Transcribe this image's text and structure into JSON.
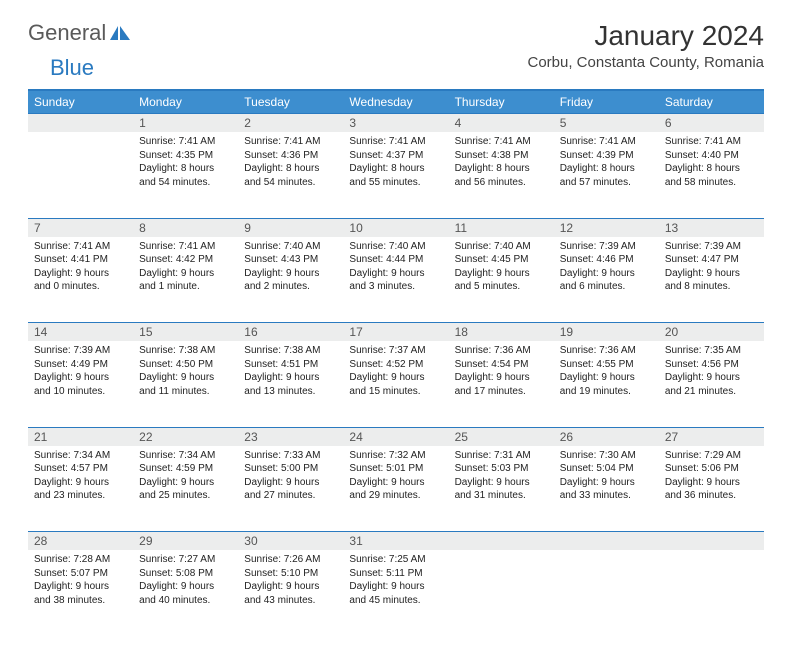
{
  "brand": {
    "part1": "General",
    "part2": "Blue"
  },
  "title": "January 2024",
  "location": "Corbu, Constanta County, Romania",
  "colors": {
    "header_bg": "#3d8ecf",
    "border": "#2a7ac0",
    "daynum_bg": "#eceded",
    "text": "#222222",
    "title_text": "#333333"
  },
  "weekdays": [
    "Sunday",
    "Monday",
    "Tuesday",
    "Wednesday",
    "Thursday",
    "Friday",
    "Saturday"
  ],
  "weeks": [
    {
      "nums": [
        "",
        "1",
        "2",
        "3",
        "4",
        "5",
        "6"
      ],
      "cells": [
        null,
        {
          "sunrise": "Sunrise: 7:41 AM",
          "sunset": "Sunset: 4:35 PM",
          "day1": "Daylight: 8 hours",
          "day2": "and 54 minutes."
        },
        {
          "sunrise": "Sunrise: 7:41 AM",
          "sunset": "Sunset: 4:36 PM",
          "day1": "Daylight: 8 hours",
          "day2": "and 54 minutes."
        },
        {
          "sunrise": "Sunrise: 7:41 AM",
          "sunset": "Sunset: 4:37 PM",
          "day1": "Daylight: 8 hours",
          "day2": "and 55 minutes."
        },
        {
          "sunrise": "Sunrise: 7:41 AM",
          "sunset": "Sunset: 4:38 PM",
          "day1": "Daylight: 8 hours",
          "day2": "and 56 minutes."
        },
        {
          "sunrise": "Sunrise: 7:41 AM",
          "sunset": "Sunset: 4:39 PM",
          "day1": "Daylight: 8 hours",
          "day2": "and 57 minutes."
        },
        {
          "sunrise": "Sunrise: 7:41 AM",
          "sunset": "Sunset: 4:40 PM",
          "day1": "Daylight: 8 hours",
          "day2": "and 58 minutes."
        }
      ]
    },
    {
      "nums": [
        "7",
        "8",
        "9",
        "10",
        "11",
        "12",
        "13"
      ],
      "cells": [
        {
          "sunrise": "Sunrise: 7:41 AM",
          "sunset": "Sunset: 4:41 PM",
          "day1": "Daylight: 9 hours",
          "day2": "and 0 minutes."
        },
        {
          "sunrise": "Sunrise: 7:41 AM",
          "sunset": "Sunset: 4:42 PM",
          "day1": "Daylight: 9 hours",
          "day2": "and 1 minute."
        },
        {
          "sunrise": "Sunrise: 7:40 AM",
          "sunset": "Sunset: 4:43 PM",
          "day1": "Daylight: 9 hours",
          "day2": "and 2 minutes."
        },
        {
          "sunrise": "Sunrise: 7:40 AM",
          "sunset": "Sunset: 4:44 PM",
          "day1": "Daylight: 9 hours",
          "day2": "and 3 minutes."
        },
        {
          "sunrise": "Sunrise: 7:40 AM",
          "sunset": "Sunset: 4:45 PM",
          "day1": "Daylight: 9 hours",
          "day2": "and 5 minutes."
        },
        {
          "sunrise": "Sunrise: 7:39 AM",
          "sunset": "Sunset: 4:46 PM",
          "day1": "Daylight: 9 hours",
          "day2": "and 6 minutes."
        },
        {
          "sunrise": "Sunrise: 7:39 AM",
          "sunset": "Sunset: 4:47 PM",
          "day1": "Daylight: 9 hours",
          "day2": "and 8 minutes."
        }
      ]
    },
    {
      "nums": [
        "14",
        "15",
        "16",
        "17",
        "18",
        "19",
        "20"
      ],
      "cells": [
        {
          "sunrise": "Sunrise: 7:39 AM",
          "sunset": "Sunset: 4:49 PM",
          "day1": "Daylight: 9 hours",
          "day2": "and 10 minutes."
        },
        {
          "sunrise": "Sunrise: 7:38 AM",
          "sunset": "Sunset: 4:50 PM",
          "day1": "Daylight: 9 hours",
          "day2": "and 11 minutes."
        },
        {
          "sunrise": "Sunrise: 7:38 AM",
          "sunset": "Sunset: 4:51 PM",
          "day1": "Daylight: 9 hours",
          "day2": "and 13 minutes."
        },
        {
          "sunrise": "Sunrise: 7:37 AM",
          "sunset": "Sunset: 4:52 PM",
          "day1": "Daylight: 9 hours",
          "day2": "and 15 minutes."
        },
        {
          "sunrise": "Sunrise: 7:36 AM",
          "sunset": "Sunset: 4:54 PM",
          "day1": "Daylight: 9 hours",
          "day2": "and 17 minutes."
        },
        {
          "sunrise": "Sunrise: 7:36 AM",
          "sunset": "Sunset: 4:55 PM",
          "day1": "Daylight: 9 hours",
          "day2": "and 19 minutes."
        },
        {
          "sunrise": "Sunrise: 7:35 AM",
          "sunset": "Sunset: 4:56 PM",
          "day1": "Daylight: 9 hours",
          "day2": "and 21 minutes."
        }
      ]
    },
    {
      "nums": [
        "21",
        "22",
        "23",
        "24",
        "25",
        "26",
        "27"
      ],
      "cells": [
        {
          "sunrise": "Sunrise: 7:34 AM",
          "sunset": "Sunset: 4:57 PM",
          "day1": "Daylight: 9 hours",
          "day2": "and 23 minutes."
        },
        {
          "sunrise": "Sunrise: 7:34 AM",
          "sunset": "Sunset: 4:59 PM",
          "day1": "Daylight: 9 hours",
          "day2": "and 25 minutes."
        },
        {
          "sunrise": "Sunrise: 7:33 AM",
          "sunset": "Sunset: 5:00 PM",
          "day1": "Daylight: 9 hours",
          "day2": "and 27 minutes."
        },
        {
          "sunrise": "Sunrise: 7:32 AM",
          "sunset": "Sunset: 5:01 PM",
          "day1": "Daylight: 9 hours",
          "day2": "and 29 minutes."
        },
        {
          "sunrise": "Sunrise: 7:31 AM",
          "sunset": "Sunset: 5:03 PM",
          "day1": "Daylight: 9 hours",
          "day2": "and 31 minutes."
        },
        {
          "sunrise": "Sunrise: 7:30 AM",
          "sunset": "Sunset: 5:04 PM",
          "day1": "Daylight: 9 hours",
          "day2": "and 33 minutes."
        },
        {
          "sunrise": "Sunrise: 7:29 AM",
          "sunset": "Sunset: 5:06 PM",
          "day1": "Daylight: 9 hours",
          "day2": "and 36 minutes."
        }
      ]
    },
    {
      "nums": [
        "28",
        "29",
        "30",
        "31",
        "",
        "",
        ""
      ],
      "cells": [
        {
          "sunrise": "Sunrise: 7:28 AM",
          "sunset": "Sunset: 5:07 PM",
          "day1": "Daylight: 9 hours",
          "day2": "and 38 minutes."
        },
        {
          "sunrise": "Sunrise: 7:27 AM",
          "sunset": "Sunset: 5:08 PM",
          "day1": "Daylight: 9 hours",
          "day2": "and 40 minutes."
        },
        {
          "sunrise": "Sunrise: 7:26 AM",
          "sunset": "Sunset: 5:10 PM",
          "day1": "Daylight: 9 hours",
          "day2": "and 43 minutes."
        },
        {
          "sunrise": "Sunrise: 7:25 AM",
          "sunset": "Sunset: 5:11 PM",
          "day1": "Daylight: 9 hours",
          "day2": "and 45 minutes."
        },
        null,
        null,
        null
      ]
    }
  ]
}
